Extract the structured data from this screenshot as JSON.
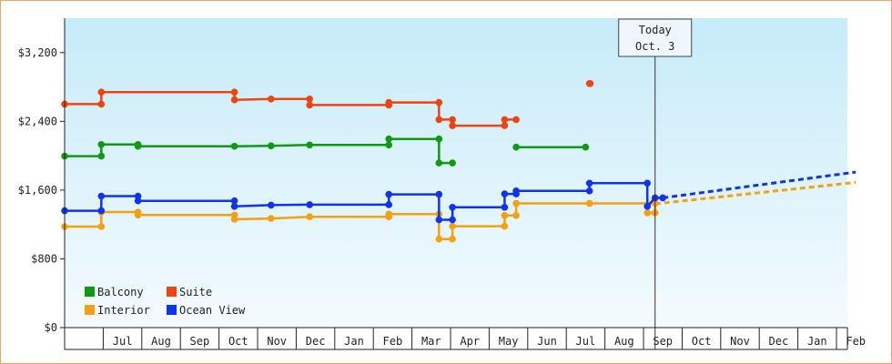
{
  "chart_data": {
    "type": "line",
    "title": "",
    "xlabel": "",
    "ylabel": "",
    "ylim": [
      0,
      3600
    ],
    "yticks": [
      {
        "value": 0,
        "label": "$0"
      },
      {
        "value": 800,
        "label": "$800"
      },
      {
        "value": 1600,
        "label": "$1,600"
      },
      {
        "value": 2400,
        "label": "$2,400"
      },
      {
        "value": 3200,
        "label": "$3,200"
      }
    ],
    "x_unit": "months since first month shown",
    "xlim": [
      0,
      20
    ],
    "months": [
      "",
      "Jul",
      "Aug",
      "Sep",
      "Oct",
      "Nov",
      "Dec",
      "Jan",
      "Feb",
      "Mar",
      "Apr",
      "May",
      "Jun",
      "Jul",
      "Aug",
      "Sep",
      "Oct",
      "Nov",
      "Dec",
      "Jan",
      "Feb"
    ],
    "today": {
      "x": 15.3,
      "line1": "Today",
      "line2": "Oct. 3"
    },
    "legend_position": "bottom-left",
    "grid": false,
    "series": [
      {
        "name": "Balcony",
        "color": "#119911",
        "segments": [
          [
            [
              0,
              1995
            ],
            [
              0.95,
              1995
            ],
            [
              0.95,
              2130
            ],
            [
              1.9,
              2130
            ],
            [
              1.9,
              2110
            ],
            [
              4.4,
              2110
            ],
            [
              5.35,
              2115
            ],
            [
              6.35,
              2125
            ],
            [
              8.4,
              2125
            ],
            [
              8.4,
              2195
            ],
            [
              9.7,
              2195
            ],
            [
              9.7,
              1915
            ],
            [
              10.05,
              1915
            ]
          ],
          [
            [
              11.7,
              2100
            ],
            [
              13.5,
              2100
            ]
          ]
        ]
      },
      {
        "name": "Suite",
        "color": "#ee4411",
        "segments": [
          [
            [
              0,
              2600
            ],
            [
              0.95,
              2600
            ],
            [
              0.95,
              2740
            ],
            [
              4.4,
              2740
            ],
            [
              4.4,
              2650
            ],
            [
              5.35,
              2660
            ],
            [
              6.35,
              2660
            ],
            [
              6.35,
              2590
            ],
            [
              8.4,
              2590
            ],
            [
              8.4,
              2620
            ],
            [
              9.7,
              2620
            ],
            [
              9.7,
              2420
            ],
            [
              10.05,
              2420
            ],
            [
              10.05,
              2350
            ],
            [
              11.4,
              2350
            ],
            [
              11.4,
              2420
            ],
            [
              11.7,
              2420
            ]
          ],
          [
            [
              13.6,
              2840
            ],
            [
              13.62,
              2840
            ]
          ]
        ]
      },
      {
        "name": "Interior",
        "color": "#f4a011",
        "segments": [
          [
            [
              0,
              1175
            ],
            [
              0.95,
              1175
            ],
            [
              0.95,
              1345
            ],
            [
              1.9,
              1345
            ],
            [
              1.9,
              1310
            ],
            [
              4.4,
              1310
            ],
            [
              4.4,
              1260
            ],
            [
              5.35,
              1270
            ],
            [
              6.35,
              1290
            ],
            [
              8.4,
              1290
            ],
            [
              8.4,
              1320
            ],
            [
              9.7,
              1320
            ],
            [
              9.7,
              1030
            ],
            [
              10.05,
              1030
            ],
            [
              10.05,
              1180
            ],
            [
              11.4,
              1180
            ],
            [
              11.4,
              1305
            ],
            [
              11.7,
              1305
            ],
            [
              11.7,
              1445
            ],
            [
              13.6,
              1445
            ],
            [
              13.6,
              1445
            ],
            [
              15.3,
              1445
            ],
            [
              15.3,
              1335
            ],
            [
              15.1,
              1335
            ]
          ],
          [
            [
              15.3,
              1440
            ],
            [
              20.5,
              1690
            ]
          ]
        ],
        "dashed_from_segment": 1
      },
      {
        "name": "Ocean View",
        "color": "#1133ee",
        "segments": [
          [
            [
              0,
              1360
            ],
            [
              0.95,
              1360
            ],
            [
              0.95,
              1530
            ],
            [
              1.9,
              1530
            ],
            [
              1.9,
              1475
            ],
            [
              4.4,
              1475
            ],
            [
              4.4,
              1410
            ],
            [
              5.35,
              1425
            ],
            [
              6.35,
              1430
            ],
            [
              8.4,
              1430
            ],
            [
              8.4,
              1550
            ],
            [
              9.7,
              1550
            ],
            [
              9.7,
              1255
            ],
            [
              10.05,
              1255
            ],
            [
              10.05,
              1400
            ],
            [
              11.4,
              1400
            ],
            [
              11.4,
              1555
            ],
            [
              11.7,
              1555
            ],
            [
              11.7,
              1590
            ],
            [
              13.6,
              1590
            ],
            [
              13.6,
              1680
            ],
            [
              15.1,
              1680
            ],
            [
              15.1,
              1410
            ],
            [
              15.3,
              1510
            ],
            [
              15.5,
              1510
            ]
          ],
          [
            [
              15.5,
              1510
            ],
            [
              20.5,
              1810
            ]
          ]
        ],
        "dashed_from_segment": 1
      }
    ]
  }
}
